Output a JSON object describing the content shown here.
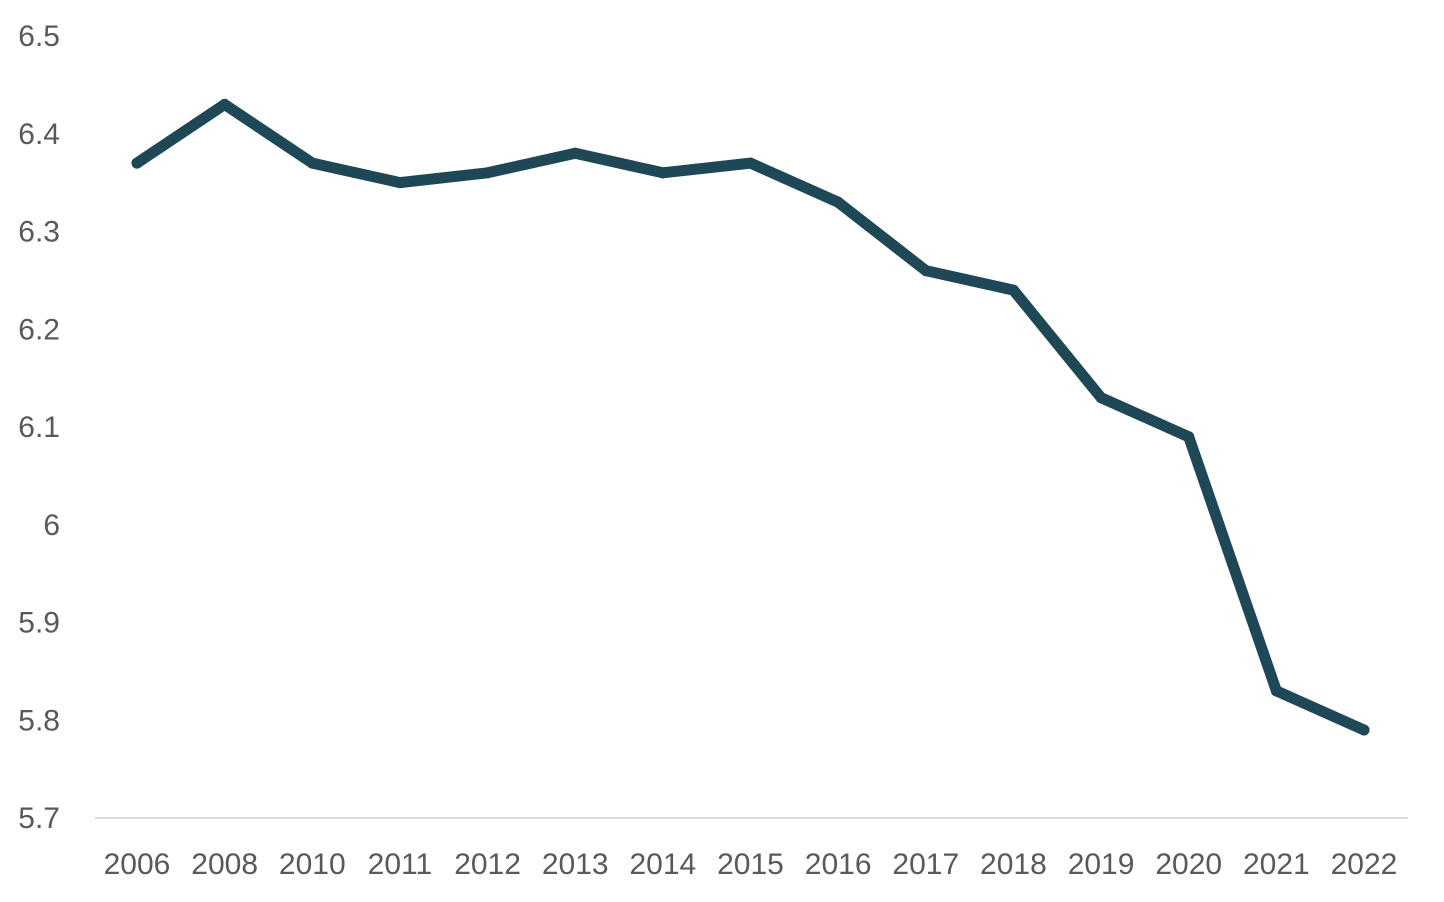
{
  "chart_data": {
    "type": "line",
    "title": "",
    "xlabel": "",
    "ylabel": "",
    "categories": [
      "2006",
      "2008",
      "2010",
      "2011",
      "2012",
      "2013",
      "2014",
      "2015",
      "2016",
      "2017",
      "2018",
      "2019",
      "2020",
      "2021",
      "2022"
    ],
    "series": [
      {
        "values": [
          6.37,
          6.43,
          6.37,
          6.35,
          6.36,
          6.38,
          6.36,
          6.37,
          6.33,
          6.26,
          6.24,
          6.13,
          6.09,
          5.83,
          5.79
        ]
      }
    ],
    "ylim": [
      5.7,
      6.5
    ],
    "yticks": [
      "6.5",
      "6.4",
      "6.3",
      "6.2",
      "6.1",
      "6",
      "5.9",
      "5.8",
      "5.7"
    ],
    "grid": false,
    "legend": "none"
  },
  "colors": {
    "line": "#1e4855",
    "axis": "#d9d9d9",
    "tick_text": "#595959",
    "background": "#ffffff"
  }
}
